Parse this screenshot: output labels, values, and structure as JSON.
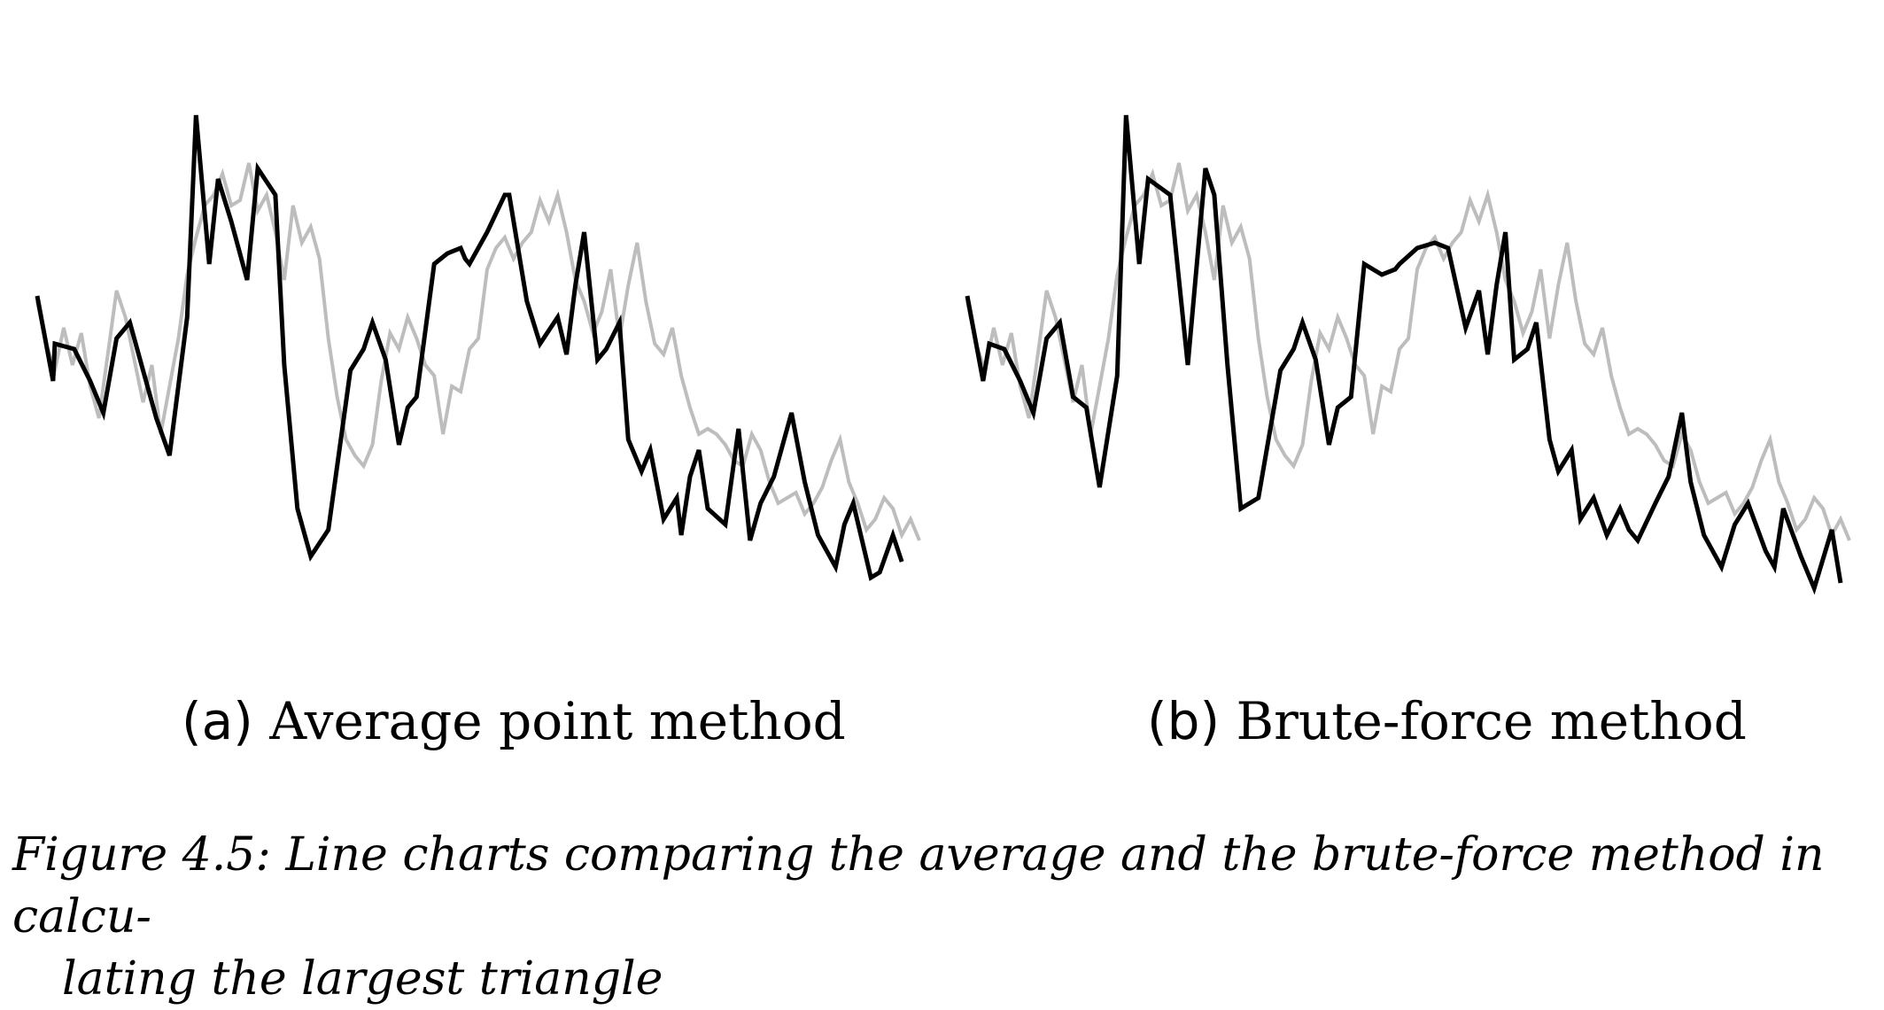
{
  "colors": {
    "original_series": "#bdbdbd",
    "downsampled_series": "#000000",
    "background": "#ffffff"
  },
  "subcaptions": {
    "a": {
      "label": "(a)",
      "text": "Average point method"
    },
    "b": {
      "label": "(b)",
      "text": "Brute-force method"
    }
  },
  "figure_caption": {
    "line1": "Figure 4.5: Line charts comparing the average and the brute-force method in calcu-",
    "line2": "lating the largest triangle"
  },
  "chart_data": [
    {
      "type": "line",
      "title": "",
      "xlabel": "",
      "ylabel": "",
      "axes_visible": false,
      "grid": false,
      "xlim": [
        0,
        100
      ],
      "ylim": [
        0,
        100
      ],
      "series": [
        {
          "role": "original",
          "color": "#bdbdbd",
          "x": [
            0,
            1,
            2,
            3,
            4,
            5,
            6,
            7,
            8,
            9,
            10,
            11,
            12,
            13,
            14,
            15,
            16,
            17,
            18,
            19,
            20,
            21,
            22,
            23,
            24,
            25,
            26,
            27,
            28,
            29,
            30,
            31,
            32,
            33,
            34,
            35,
            36,
            37,
            38,
            39,
            40,
            41,
            42,
            43,
            44,
            45,
            46,
            47,
            48,
            49,
            50,
            51,
            52,
            53,
            54,
            55,
            56,
            57,
            58,
            59,
            60,
            61,
            62,
            63,
            64,
            65,
            66,
            67,
            68,
            69,
            70,
            71,
            72,
            73,
            74,
            75,
            76,
            77,
            78,
            79,
            80,
            81,
            82,
            83,
            84,
            85,
            86,
            87,
            88,
            89,
            90,
            91,
            92,
            93,
            94,
            95,
            96,
            97,
            98,
            99,
            100
          ],
          "y": [
            60,
            52,
            47,
            55,
            48,
            54,
            44,
            38,
            50,
            62,
            57,
            49,
            41,
            48,
            35,
            44,
            53,
            65,
            72,
            78,
            80,
            84,
            78,
            79,
            86,
            77,
            80,
            73,
            64,
            78,
            71,
            74,
            68,
            53,
            42,
            34,
            31,
            29,
            33,
            45,
            54,
            51,
            57,
            53,
            48,
            46,
            35,
            44,
            43,
            51,
            53,
            66,
            70,
            72,
            68,
            71,
            73,
            79,
            75,
            80,
            73,
            64,
            60,
            54,
            58,
            66,
            53,
            63,
            71,
            60,
            52,
            50,
            55,
            46,
            40,
            35,
            36,
            35,
            33,
            30,
            29,
            35,
            32,
            26,
            22,
            23,
            24,
            20,
            22,
            25,
            30,
            34,
            26,
            22,
            17,
            19,
            23,
            21,
            16,
            19,
            15
          ]
        },
        {
          "role": "downsampled",
          "color": "#000000",
          "x": [
            0,
            1.8,
            2,
            4.2,
            6,
            7.5,
            9,
            10.5,
            12,
            13.5,
            15,
            17,
            18,
            19.5,
            20.5,
            22,
            23.8,
            25,
            27,
            28,
            29.5,
            31,
            33,
            35.5,
            37,
            38,
            39.5,
            41,
            42,
            43,
            45,
            46.5,
            48,
            48.5,
            49,
            51,
            53,
            53.5,
            55.5,
            57,
            59,
            60,
            61,
            62,
            63.5,
            64.5,
            66,
            67,
            68.5,
            69.5,
            71,
            72.5,
            73,
            74,
            75,
            76,
            78,
            79.5,
            80.8,
            82,
            83.5,
            85.5,
            87,
            88.5,
            90.5,
            91.5,
            92.5,
            94.5,
            95.5,
            97,
            98
          ],
          "y": [
            61,
            45,
            52,
            51,
            45,
            39,
            53,
            56,
            47,
            38,
            31,
            57,
            95,
            67,
            83,
            75,
            64,
            85,
            80,
            48,
            21,
            12,
            17,
            47,
            51,
            56,
            49,
            33,
            40,
            42,
            67,
            69,
            70,
            68,
            67,
            73,
            80,
            80,
            60,
            52,
            57,
            50,
            63,
            73,
            49,
            51,
            56,
            34,
            28,
            32,
            19,
            23,
            16,
            27,
            32,
            21,
            18,
            36,
            15,
            22,
            27,
            39,
            26,
            16,
            10,
            18,
            22,
            8,
            9,
            16,
            11
          ]
        }
      ]
    },
    {
      "type": "line",
      "title": "",
      "xlabel": "",
      "ylabel": "",
      "axes_visible": false,
      "grid": false,
      "xlim": [
        0,
        100
      ],
      "ylim": [
        0,
        100
      ],
      "series": [
        {
          "role": "original",
          "color": "#bdbdbd",
          "x": [
            0,
            1,
            2,
            3,
            4,
            5,
            6,
            7,
            8,
            9,
            10,
            11,
            12,
            13,
            14,
            15,
            16,
            17,
            18,
            19,
            20,
            21,
            22,
            23,
            24,
            25,
            26,
            27,
            28,
            29,
            30,
            31,
            32,
            33,
            34,
            35,
            36,
            37,
            38,
            39,
            40,
            41,
            42,
            43,
            44,
            45,
            46,
            47,
            48,
            49,
            50,
            51,
            52,
            53,
            54,
            55,
            56,
            57,
            58,
            59,
            60,
            61,
            62,
            63,
            64,
            65,
            66,
            67,
            68,
            69,
            70,
            71,
            72,
            73,
            74,
            75,
            76,
            77,
            78,
            79,
            80,
            81,
            82,
            83,
            84,
            85,
            86,
            87,
            88,
            89,
            90,
            91,
            92,
            93,
            94,
            95,
            96,
            97,
            98,
            99,
            100
          ],
          "y": [
            60,
            52,
            47,
            55,
            48,
            54,
            44,
            38,
            50,
            62,
            57,
            49,
            41,
            48,
            35,
            44,
            53,
            65,
            72,
            78,
            80,
            84,
            78,
            79,
            86,
            77,
            80,
            73,
            64,
            78,
            71,
            74,
            68,
            53,
            42,
            34,
            31,
            29,
            33,
            45,
            54,
            51,
            57,
            53,
            48,
            46,
            35,
            44,
            43,
            51,
            53,
            66,
            70,
            72,
            68,
            71,
            73,
            79,
            75,
            80,
            73,
            64,
            60,
            54,
            58,
            66,
            53,
            63,
            71,
            60,
            52,
            50,
            55,
            46,
            40,
            35,
            36,
            35,
            33,
            30,
            29,
            35,
            32,
            26,
            22,
            23,
            24,
            20,
            22,
            25,
            30,
            34,
            26,
            22,
            17,
            19,
            23,
            21,
            16,
            19,
            15
          ]
        },
        {
          "role": "downsampled",
          "color": "#000000",
          "x": [
            0,
            1.8,
            2.5,
            4.2,
            6,
            7.5,
            9,
            10.5,
            12,
            13.5,
            15,
            17,
            18,
            19.5,
            20.5,
            23,
            25,
            27,
            28,
            29.5,
            31,
            33,
            35.5,
            37,
            38,
            39.5,
            41,
            42,
            43.5,
            45,
            47,
            48.5,
            49,
            51,
            53,
            54.5,
            56.5,
            58,
            59,
            60,
            61,
            62,
            63.5,
            64.5,
            66,
            67,
            68.5,
            69.5,
            71,
            72.5,
            74,
            75,
            76,
            78,
            79.5,
            81,
            82,
            83.5,
            85.5,
            87,
            88.5,
            90.5,
            91.5,
            92.5,
            94.5,
            96,
            98,
            99
          ],
          "y": [
            61,
            45,
            52,
            51,
            45,
            39,
            53,
            56,
            42,
            40,
            25,
            46,
            95,
            67,
            83,
            80,
            48,
            85,
            80,
            48,
            21,
            23,
            47,
            51,
            56,
            49,
            33,
            40,
            42,
            67,
            65,
            66,
            67,
            70,
            71,
            70,
            55,
            62,
            50,
            63,
            73,
            49,
            51,
            56,
            34,
            28,
            32,
            19,
            23,
            16,
            21,
            17,
            15,
            22,
            27,
            39,
            26,
            16,
            10,
            18,
            22,
            13,
            10,
            21,
            12,
            6,
            17,
            7
          ]
        }
      ]
    }
  ]
}
